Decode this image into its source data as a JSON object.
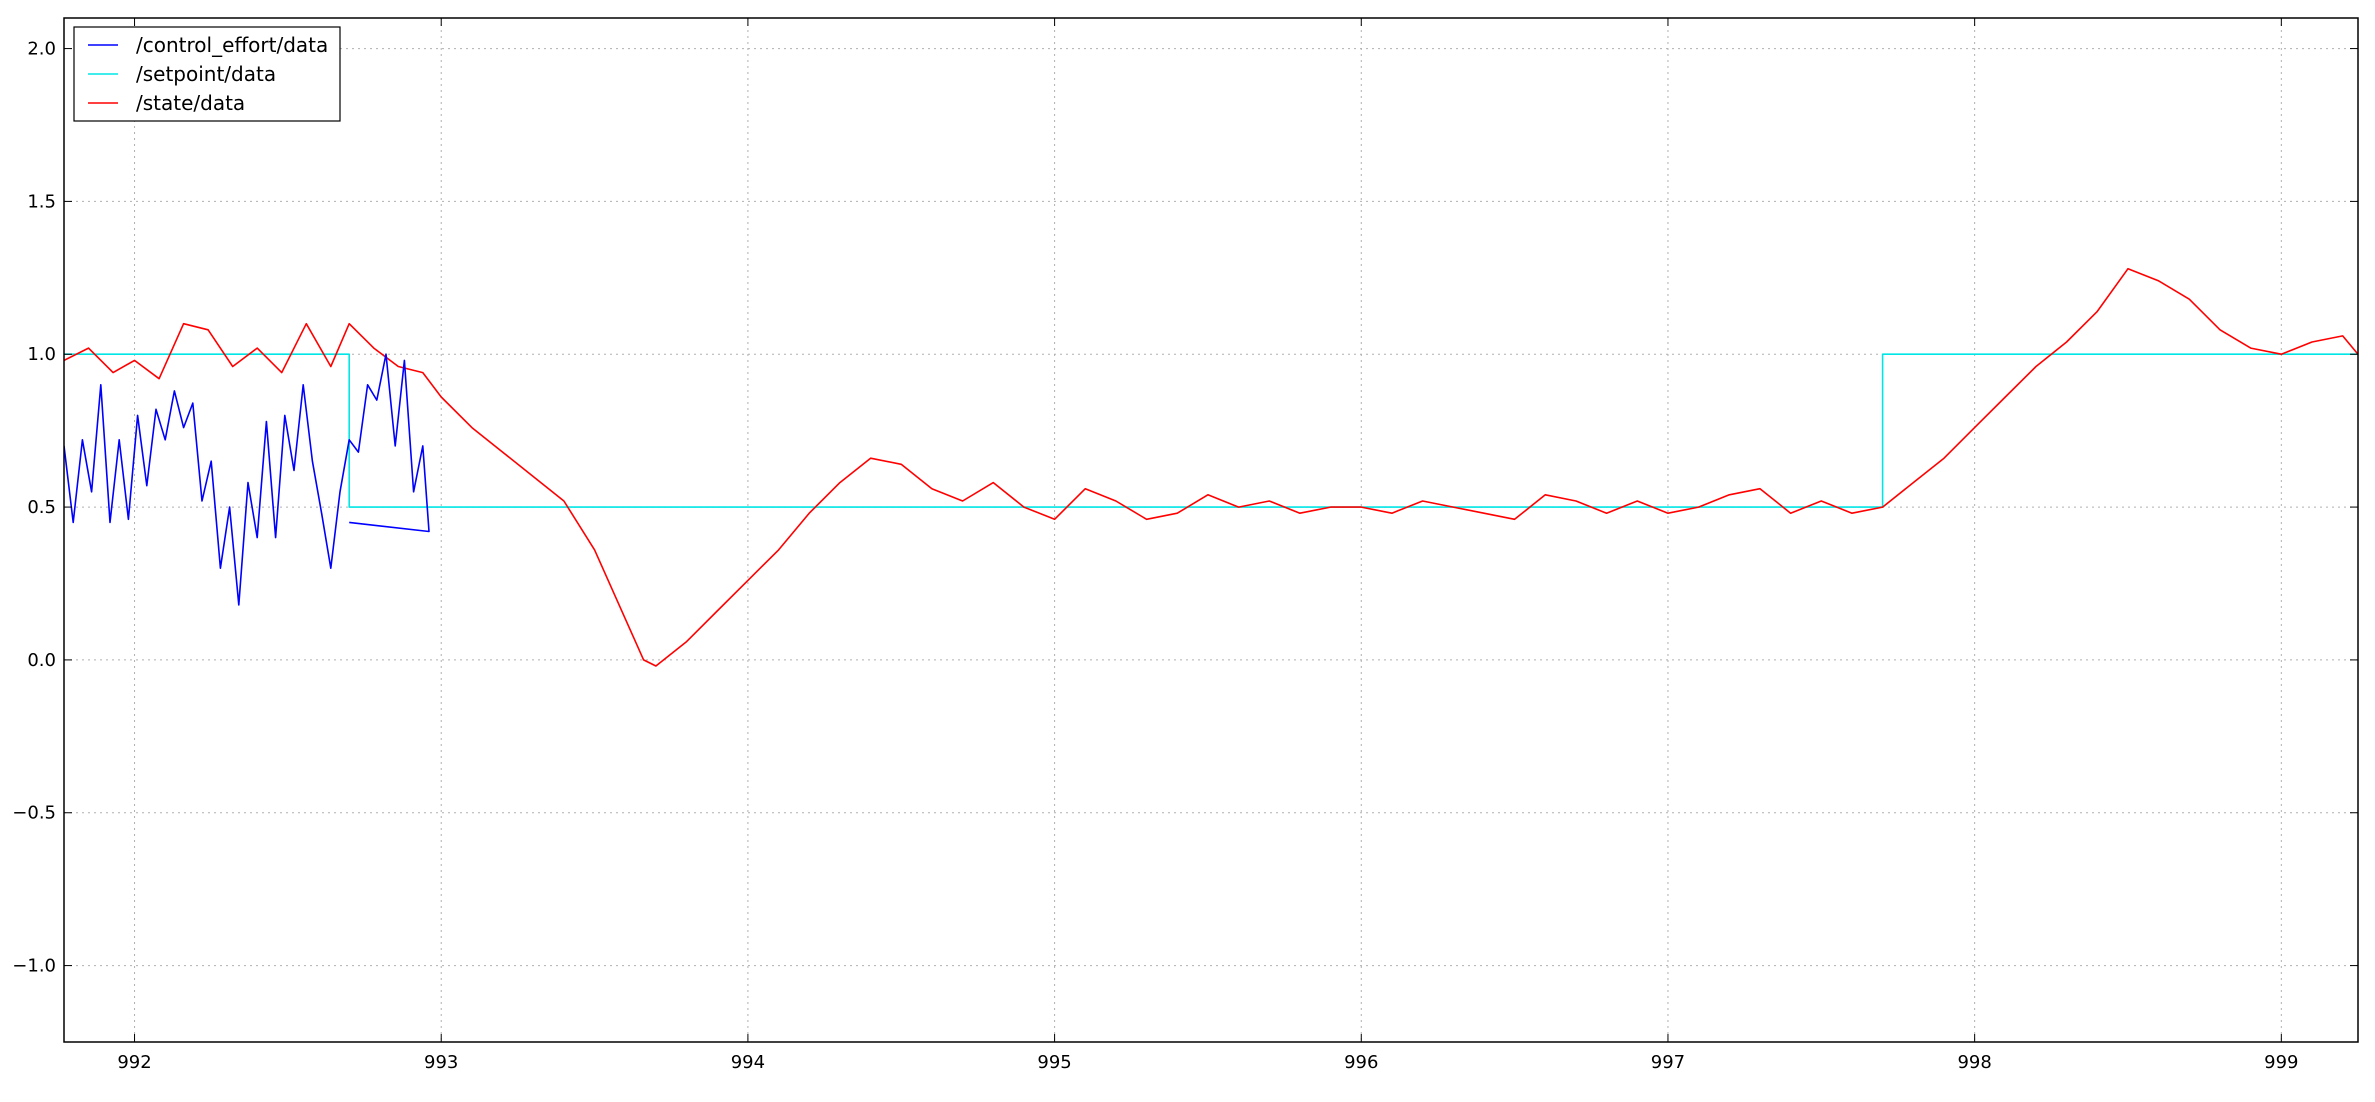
{
  "chart_data": {
    "type": "line",
    "title": "",
    "xlabel": "",
    "ylabel": "",
    "xlim": [
      991.77,
      999.25
    ],
    "ylim": [
      -1.25,
      2.1
    ],
    "xticks": [
      992,
      993,
      994,
      995,
      996,
      997,
      998,
      999
    ],
    "xtick_labels": [
      "992",
      "993",
      "994",
      "995",
      "996",
      "997",
      "998",
      "999"
    ],
    "yticks": [
      -1.0,
      -0.5,
      0.0,
      0.5,
      1.0,
      1.5,
      2.0
    ],
    "ytick_labels": [
      "−1.0",
      "−0.5",
      "0.0",
      "0.5",
      "1.0",
      "1.5",
      "2.0"
    ],
    "grid": true,
    "legend_position": "top-left",
    "series": [
      {
        "name": "/control_effort/data",
        "color": "#0000ff",
        "points": [
          [
            991.77,
            0.7
          ],
          [
            991.8,
            0.45
          ],
          [
            991.83,
            0.72
          ],
          [
            991.86,
            0.55
          ],
          [
            991.89,
            0.9
          ],
          [
            991.92,
            0.45
          ],
          [
            991.95,
            0.72
          ],
          [
            991.98,
            0.46
          ],
          [
            992.01,
            0.8
          ],
          [
            992.04,
            0.57
          ],
          [
            992.07,
            0.82
          ],
          [
            992.1,
            0.72
          ],
          [
            992.13,
            0.88
          ],
          [
            992.16,
            0.76
          ],
          [
            992.19,
            0.84
          ],
          [
            992.22,
            0.52
          ],
          [
            992.25,
            0.65
          ],
          [
            992.28,
            0.3
          ],
          [
            992.31,
            0.5
          ],
          [
            992.34,
            0.18
          ],
          [
            992.37,
            0.58
          ],
          [
            992.4,
            0.4
          ],
          [
            992.43,
            0.78
          ],
          [
            992.46,
            0.4
          ],
          [
            992.49,
            0.8
          ],
          [
            992.52,
            0.62
          ],
          [
            992.55,
            0.9
          ],
          [
            992.58,
            0.65
          ],
          [
            992.61,
            0.48
          ],
          [
            992.64,
            0.3
          ],
          [
            992.67,
            0.55
          ],
          [
            992.7,
            0.72
          ],
          [
            992.73,
            0.68
          ],
          [
            992.76,
            0.9
          ],
          [
            992.79,
            0.85
          ],
          [
            992.82,
            1.0
          ],
          [
            992.85,
            0.7
          ],
          [
            992.88,
            0.98
          ],
          [
            992.91,
            0.55
          ],
          [
            992.94,
            0.7
          ],
          [
            992.96,
            0.42
          ],
          [
            992.7,
            0.45
          ]
        ]
      },
      {
        "name": "/setpoint/data",
        "color": "#00e5e5",
        "points": [
          [
            991.77,
            1.0
          ],
          [
            992.7,
            1.0
          ],
          [
            992.7,
            0.5
          ],
          [
            997.7,
            0.5
          ],
          [
            997.7,
            1.0
          ],
          [
            999.25,
            1.0
          ]
        ]
      },
      {
        "name": "/state/data",
        "color": "#ff0000",
        "points": [
          [
            991.77,
            0.98
          ],
          [
            991.85,
            1.02
          ],
          [
            991.93,
            0.94
          ],
          [
            992.0,
            0.98
          ],
          [
            992.08,
            0.92
          ],
          [
            992.16,
            1.1
          ],
          [
            992.24,
            1.08
          ],
          [
            992.32,
            0.96
          ],
          [
            992.4,
            1.02
          ],
          [
            992.48,
            0.94
          ],
          [
            992.56,
            1.1
          ],
          [
            992.64,
            0.96
          ],
          [
            992.7,
            1.1
          ],
          [
            992.78,
            1.02
          ],
          [
            992.86,
            0.96
          ],
          [
            992.94,
            0.94
          ],
          [
            993.0,
            0.86
          ],
          [
            993.1,
            0.76
          ],
          [
            993.2,
            0.68
          ],
          [
            993.3,
            0.6
          ],
          [
            993.4,
            0.52
          ],
          [
            993.5,
            0.36
          ],
          [
            993.58,
            0.18
          ],
          [
            993.66,
            0.0
          ],
          [
            993.7,
            -0.02
          ],
          [
            993.8,
            0.06
          ],
          [
            993.9,
            0.16
          ],
          [
            994.0,
            0.26
          ],
          [
            994.1,
            0.36
          ],
          [
            994.2,
            0.48
          ],
          [
            994.3,
            0.58
          ],
          [
            994.4,
            0.66
          ],
          [
            994.5,
            0.64
          ],
          [
            994.6,
            0.56
          ],
          [
            994.7,
            0.52
          ],
          [
            994.8,
            0.58
          ],
          [
            994.9,
            0.5
          ],
          [
            995.0,
            0.46
          ],
          [
            995.1,
            0.56
          ],
          [
            995.2,
            0.52
          ],
          [
            995.3,
            0.46
          ],
          [
            995.4,
            0.48
          ],
          [
            995.5,
            0.54
          ],
          [
            995.6,
            0.5
          ],
          [
            995.7,
            0.52
          ],
          [
            995.8,
            0.48
          ],
          [
            995.9,
            0.5
          ],
          [
            996.0,
            0.5
          ],
          [
            996.1,
            0.48
          ],
          [
            996.2,
            0.52
          ],
          [
            996.3,
            0.5
          ],
          [
            996.4,
            0.48
          ],
          [
            996.5,
            0.46
          ],
          [
            996.6,
            0.54
          ],
          [
            996.7,
            0.52
          ],
          [
            996.8,
            0.48
          ],
          [
            996.9,
            0.52
          ],
          [
            997.0,
            0.48
          ],
          [
            997.1,
            0.5
          ],
          [
            997.2,
            0.54
          ],
          [
            997.3,
            0.56
          ],
          [
            997.4,
            0.48
          ],
          [
            997.5,
            0.52
          ],
          [
            997.6,
            0.48
          ],
          [
            997.7,
            0.5
          ],
          [
            997.8,
            0.58
          ],
          [
            997.9,
            0.66
          ],
          [
            998.0,
            0.76
          ],
          [
            998.1,
            0.86
          ],
          [
            998.2,
            0.96
          ],
          [
            998.3,
            1.04
          ],
          [
            998.4,
            1.14
          ],
          [
            998.5,
            1.28
          ],
          [
            998.6,
            1.24
          ],
          [
            998.7,
            1.18
          ],
          [
            998.8,
            1.08
          ],
          [
            998.9,
            1.02
          ],
          [
            999.0,
            1.0
          ],
          [
            999.1,
            1.04
          ],
          [
            999.2,
            1.06
          ],
          [
            999.25,
            1.0
          ]
        ]
      }
    ]
  }
}
